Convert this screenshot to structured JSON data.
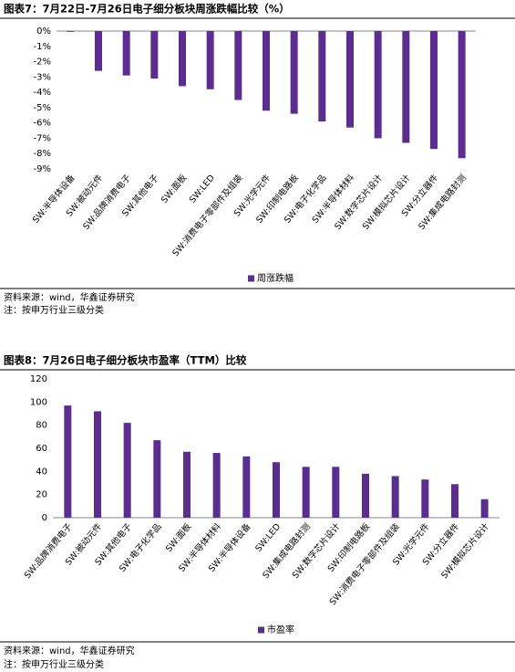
{
  "chart_data": [
    {
      "type": "bar",
      "title": "图表7：7月22日-7月26日电子细分板块周涨跌幅比较（%）",
      "categories": [
        "SW:半导体设备",
        "SW:被动元件",
        "SW:品牌消费电子",
        "SW:其他电子",
        "SW:面板",
        "SW:LED",
        "SW:消费电子零部件及组装",
        "SW:光学元件",
        "SW:印制电路板",
        "SW:电子化学品",
        "SW:半导体材料",
        "SW:数字芯片设计",
        "SW:模拟芯片设计",
        "SW:分立器件",
        "SW:集成电路封测"
      ],
      "series": [
        {
          "name": "周涨跌幅",
          "color": "#5b2d8e",
          "values": [
            -0.05,
            -2.6,
            -2.9,
            -3.1,
            -3.6,
            -3.8,
            -4.5,
            -5.2,
            -5.4,
            -5.9,
            -6.3,
            -7.0,
            -7.3,
            -7.7,
            -8.3
          ]
        }
      ],
      "ylim": [
        -9,
        0
      ],
      "yticks": [
        {
          "value": 0,
          "label": "0%"
        },
        {
          "value": -1,
          "label": "-1%"
        },
        {
          "value": -2,
          "label": "-2%"
        },
        {
          "value": -3,
          "label": "-3%"
        },
        {
          "value": -4,
          "label": "-4%"
        },
        {
          "value": -5,
          "label": "-5%"
        },
        {
          "value": -6,
          "label": "-6%"
        },
        {
          "value": -7,
          "label": "-7%"
        },
        {
          "value": -8,
          "label": "-8%"
        },
        {
          "value": -9,
          "label": "-9%"
        }
      ],
      "grid": false,
      "source": "资料来源：wind，华鑫证券研究",
      "note": "注：按申万行业三级分类"
    },
    {
      "type": "bar",
      "title": "图表8：7月26日电子细分板块市盈率（TTM）比较",
      "categories": [
        "SW:品牌消费电子",
        "SW:被动元件",
        "SW:其他电子",
        "SW:电子化学品",
        "SW:面板",
        "SW:半导体材料",
        "SW:半导体设备",
        "SW:LED",
        "SW:集成电路封测",
        "SW:数字芯片设计",
        "SW:印制电路板",
        "SW:消费电子零部件及组装",
        "SW:光学元件",
        "SW:分立器件",
        "SW:模拟芯片设计"
      ],
      "series": [
        {
          "name": "市盈率",
          "color": "#5b2d8e",
          "values": [
            97,
            92,
            82,
            67,
            57,
            56,
            53,
            48,
            44,
            44,
            38,
            36,
            33,
            29,
            16
          ]
        }
      ],
      "ylim": [
        0,
        120
      ],
      "yticks": [
        0,
        20,
        40,
        60,
        80,
        100,
        120
      ],
      "grid": false,
      "source": "资料来源：wind，华鑫证券研究",
      "note": "注：按申万行业三级分类"
    }
  ]
}
